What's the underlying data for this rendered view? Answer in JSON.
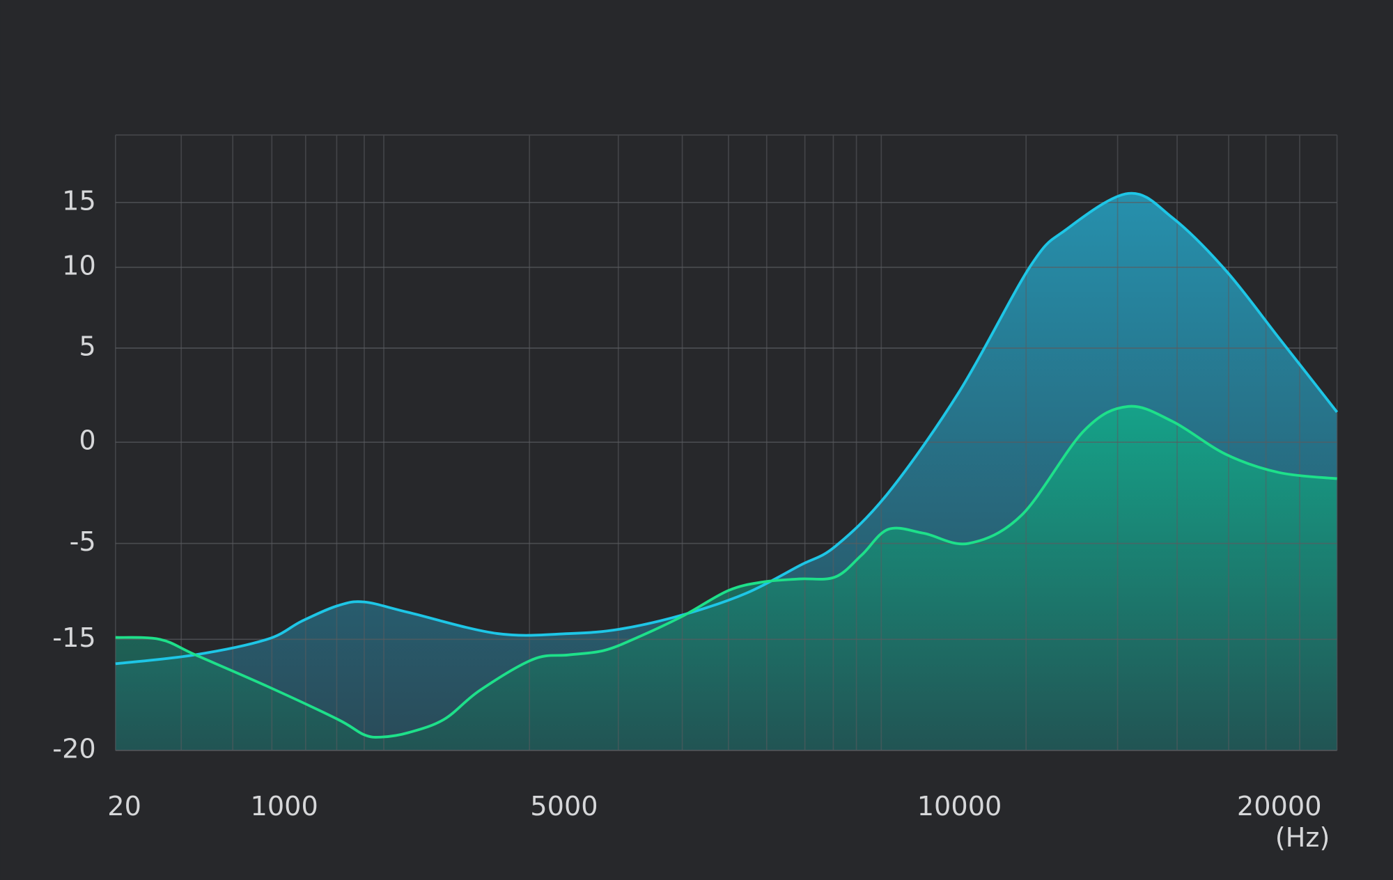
{
  "chart_data": {
    "type": "area",
    "x_label": "(Hz)",
    "xlim": [
      20,
      22000
    ],
    "xticks": [
      20,
      1000,
      5000,
      10000,
      20000
    ],
    "ylim": [
      -20,
      18
    ],
    "yticks": [
      15,
      10,
      5,
      0,
      -5,
      -15,
      -20
    ],
    "grid": true,
    "series": [
      {
        "color": "#1ec6e6",
        "x": [
          20,
          480,
          900,
          1250,
          1760,
          2140,
          2780,
          4050,
          5060,
          5730,
          6520,
          7300,
          7980,
          8430,
          9100,
          10000,
          12220,
          13330,
          15280,
          16670,
          18330,
          20000,
          22000
        ],
        "values": [
          -16.1,
          -15.7,
          -15.0,
          -13.1,
          -11.5,
          -11.1,
          -12.2,
          -14.4,
          -14.4,
          -13.9,
          -12.4,
          -10.2,
          -7.3,
          -5.3,
          -2.5,
          2.7,
          10.1,
          12.9,
          15.4,
          13.8,
          9.8,
          5.6,
          1.6
        ]
      },
      {
        "color": "#1ee08a",
        "x": [
          20,
          278,
          484,
          897,
          1762,
          2143,
          2397,
          2778,
          3286,
          3794,
          4556,
          5056,
          5506,
          5955,
          6517,
          7079,
          7528,
          7978,
          8427,
          8764,
          9101,
          9551,
          10278,
          11944,
          13889,
          15278,
          16667,
          18333,
          20000,
          22000
        ],
        "values": [
          -14.8,
          -15.0,
          -15.7,
          -17.1,
          -18.6,
          -19.3,
          -19.4,
          -19.2,
          -18.6,
          -17.3,
          -15.9,
          -15.7,
          -15.5,
          -14.7,
          -12.5,
          -9.9,
          -9.0,
          -8.7,
          -8.5,
          -6.2,
          -4.3,
          -4.5,
          -5.0,
          -3.6,
          0.6,
          1.9,
          1.1,
          -0.6,
          -1.5,
          -1.8
        ]
      }
    ]
  }
}
